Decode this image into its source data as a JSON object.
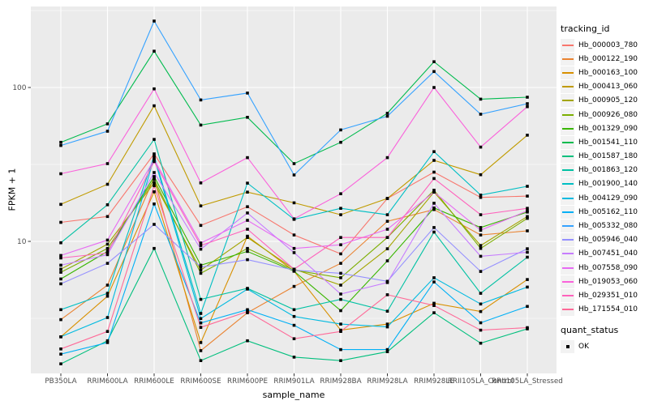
{
  "axes": {
    "y_title": "FPKM + 1",
    "x_title": "sample_name",
    "y_tick_labels": [
      "100",
      "10"
    ]
  },
  "legend": {
    "tracking_title": "tracking_id",
    "quant_title": "quant_status",
    "quant_ok_label": "OK"
  },
  "colors": {
    "panel_bg": "#EBEBEB",
    "grid": "#FFFFFF",
    "tick_label": "#4D4D4D",
    "tick_mark": "#333333",
    "point": "#000000",
    "legend_key_bg": "#F2F2F2"
  },
  "chart_data": {
    "type": "line",
    "title": "",
    "xlabel": "sample_name",
    "ylabel": "FPKM + 1",
    "y_scale": "log10",
    "ylim": [
      1.35,
      350
    ],
    "y_major_ticks": [
      100,
      10
    ],
    "y_minor_ticks": [
      316.2,
      31.62,
      3.162
    ],
    "grid": true,
    "legend_position": "right",
    "categories": [
      "PB350LA",
      "RRIM600LA",
      "RRIM600LE",
      "RRIM600SE",
      "RRIM600PE",
      "RRIM901LA",
      "RRIM928BA",
      "RRIM928LA",
      "RRIM928LE",
      "RRII105LA_Control",
      "RRII105LA_Stressed"
    ],
    "series": [
      {
        "name": "Hb_000003_780",
        "color": "#F8766D",
        "values": [
          13.3,
          14.5,
          37,
          12.7,
          16.8,
          11,
          8.3,
          19,
          28.2,
          19.3,
          19.7
        ]
      },
      {
        "name": "Hb_000122_190",
        "color": "#EA8331",
        "values": [
          3.1,
          5.2,
          26,
          1.95,
          3.44,
          5.1,
          7.2,
          13.5,
          16.1,
          11.0,
          11.7
        ]
      },
      {
        "name": "Hb_000163_100",
        "color": "#D89000",
        "values": [
          2.4,
          4.4,
          21,
          2.2,
          10.8,
          6.4,
          2.65,
          2.9,
          3.96,
          3.5,
          5.65
        ]
      },
      {
        "name": "Hb_000413_060",
        "color": "#C09B00",
        "values": [
          17.4,
          23.5,
          76,
          17.0,
          20.9,
          17.8,
          14.9,
          19.0,
          33.6,
          27.1,
          49
        ]
      },
      {
        "name": "Hb_000905_120",
        "color": "#A3A500",
        "values": [
          6.6,
          9.6,
          24,
          6.5,
          10.6,
          6.6,
          5.2,
          8.96,
          20.9,
          9.4,
          14.5
        ]
      },
      {
        "name": "Hb_000926_080",
        "color": "#7CAE00",
        "values": [
          6.3,
          9.0,
          25.2,
          6.2,
          9.0,
          6.5,
          5.8,
          10.6,
          21.5,
          9.0,
          14.1
        ]
      },
      {
        "name": "Hb_001329_090",
        "color": "#39B600",
        "values": [
          5.7,
          8.6,
          26.4,
          7.0,
          8.6,
          6.4,
          3.55,
          7.48,
          16.5,
          12.3,
          15.5
        ]
      },
      {
        "name": "Hb_001541_110",
        "color": "#00BB4E",
        "values": [
          44,
          58,
          172,
          57,
          64,
          32,
          44,
          68,
          147,
          84,
          86.5
        ]
      },
      {
        "name": "Hb_001587_180",
        "color": "#00BF7D",
        "values": [
          1.6,
          2.26,
          9.0,
          1.68,
          2.26,
          1.77,
          1.68,
          1.92,
          3.44,
          2.18,
          2.7
        ]
      },
      {
        "name": "Hb_001863_120",
        "color": "#00C1A3",
        "values": [
          9.8,
          17.3,
          46,
          4.2,
          4.95,
          3.6,
          4.2,
          3.52,
          11.5,
          4.6,
          7.9
        ]
      },
      {
        "name": "Hb_001900_140",
        "color": "#00BFC4",
        "values": [
          3.6,
          4.6,
          36,
          3.4,
          23.9,
          13.9,
          16.4,
          14.9,
          38.3,
          20.0,
          22.8
        ]
      },
      {
        "name": "Hb_004129_090",
        "color": "#00BAE0",
        "values": [
          2.4,
          3.2,
          35,
          3.15,
          4.9,
          3.25,
          2.9,
          2.78,
          5.8,
          3.92,
          5.05
        ]
      },
      {
        "name": "Hb_005162_110",
        "color": "#00B0F6",
        "values": [
          1.85,
          2.2,
          17.5,
          2.95,
          3.6,
          2.85,
          1.98,
          1.98,
          5.45,
          2.96,
          3.78
        ]
      },
      {
        "name": "Hb_005332_080",
        "color": "#35A2FF",
        "values": [
          42,
          52,
          270,
          83,
          92,
          27,
          53,
          65,
          127,
          67,
          78.5
        ]
      },
      {
        "name": "Hb_005946_040",
        "color": "#9590FF",
        "values": [
          5.3,
          7.2,
          12.9,
          6.8,
          7.6,
          6.5,
          6.2,
          5.5,
          12.3,
          6.38,
          8.96
        ]
      },
      {
        "name": "Hb_007451_040",
        "color": "#C77CFF",
        "values": [
          7.0,
          8.2,
          28,
          8.9,
          15.3,
          8.45,
          4.55,
          5.4,
          17.7,
          8.0,
          8.5
        ]
      },
      {
        "name": "Hb_007558_090",
        "color": "#E76BF3",
        "values": [
          8.1,
          10.2,
          34,
          9.76,
          13.7,
          9.0,
          9.5,
          12.0,
          20.9,
          11.8,
          15.8
        ]
      },
      {
        "name": "Hb_019053_060",
        "color": "#FA62DB",
        "values": [
          27.5,
          32,
          98,
          24,
          35,
          14,
          20.4,
          35,
          100,
          41,
          75
        ]
      },
      {
        "name": "Hb_029351_010",
        "color": "#FF62BC",
        "values": [
          7.8,
          8.4,
          33,
          9.4,
          12.0,
          6.6,
          10.6,
          10.6,
          25.6,
          14.9,
          16.4
        ]
      },
      {
        "name": "Hb_171554_010",
        "color": "#FF6A98",
        "values": [
          2.0,
          2.6,
          23,
          2.76,
          3.5,
          2.33,
          2.6,
          4.5,
          3.83,
          2.65,
          2.75
        ]
      }
    ]
  }
}
